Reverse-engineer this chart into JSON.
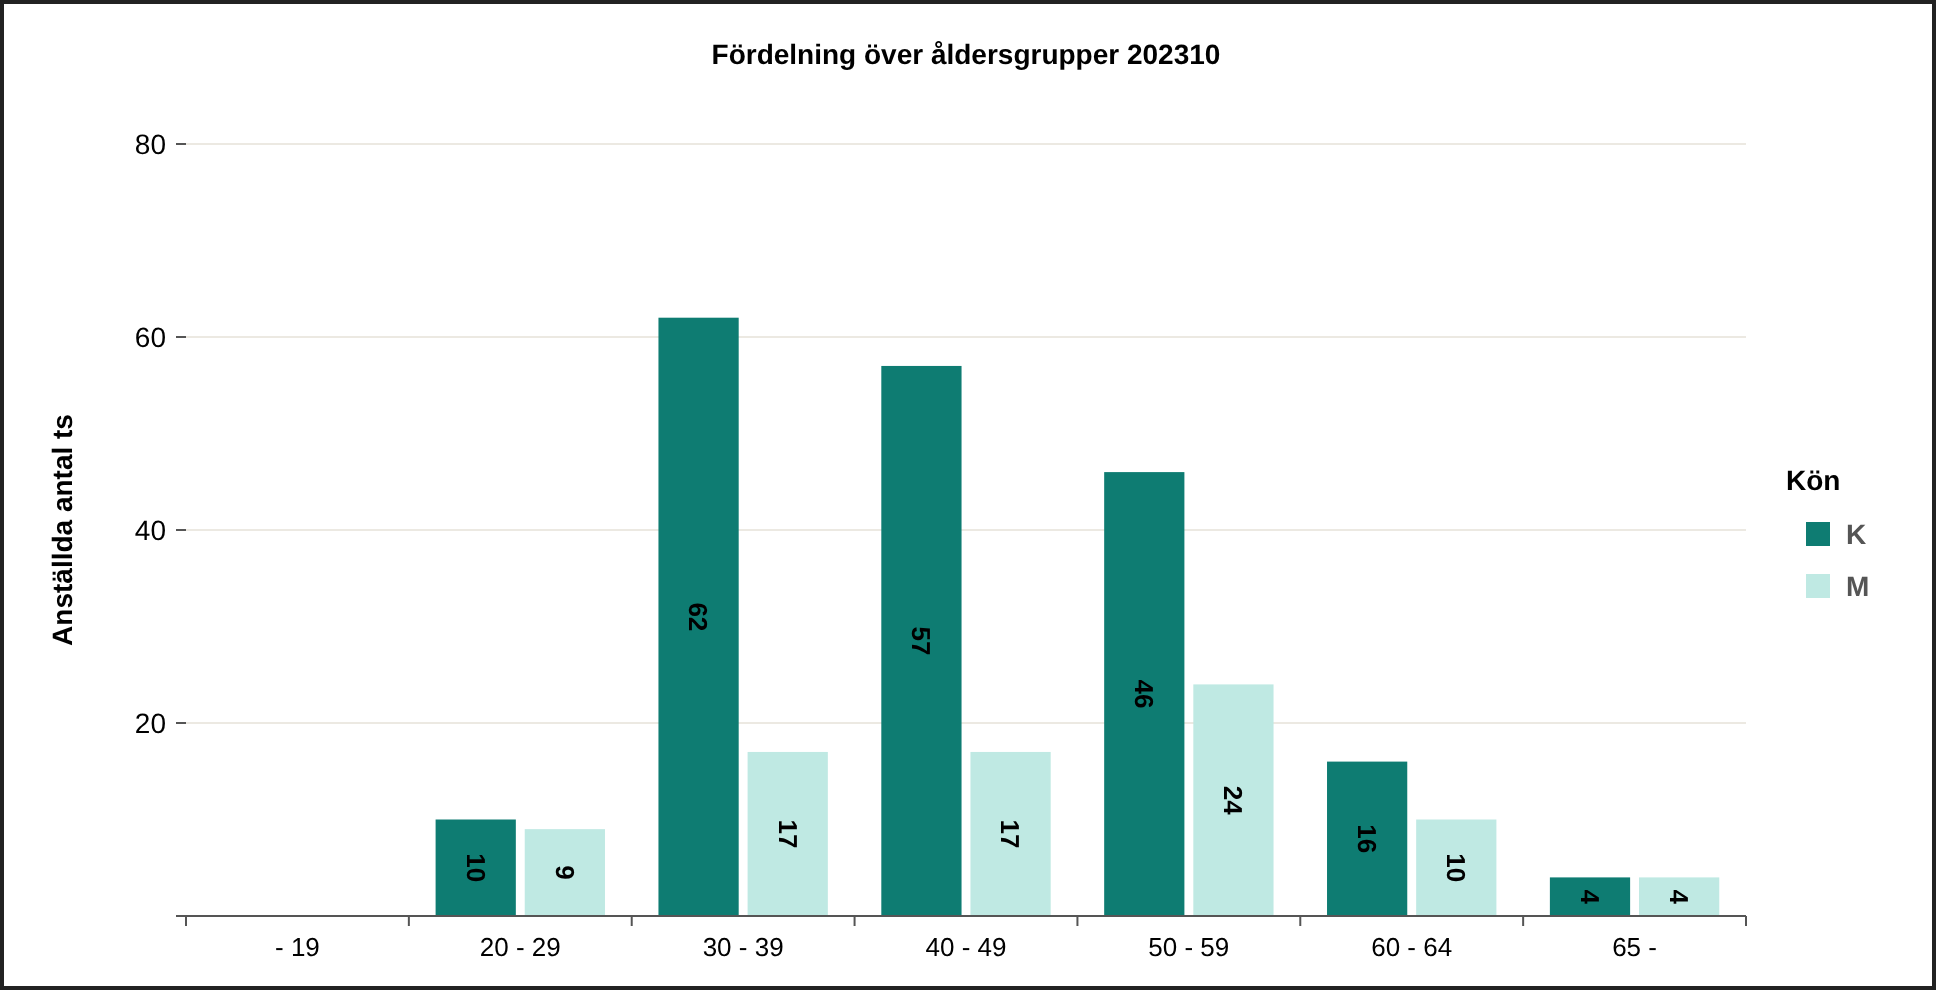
{
  "chart_data": {
    "type": "bar",
    "title": "Fördelning över åldersgrupper 202310",
    "ylabel": "Anställda antal ts",
    "legend_title": "Kön",
    "categories": [
      "- 19",
      "20 - 29",
      "30 - 39",
      "40 - 49",
      "50 - 59",
      "60 - 64",
      "65 -"
    ],
    "series": [
      {
        "name": "K",
        "color": "#0e7c72",
        "values": [
          null,
          10,
          62,
          57,
          46,
          16,
          4
        ]
      },
      {
        "name": "M",
        "color": "#bfe9e3",
        "values": [
          null,
          9,
          17,
          17,
          24,
          10,
          4
        ]
      }
    ],
    "ylim": [
      0,
      80
    ],
    "yticks": [
      {
        "value": 0,
        "label": null
      },
      20,
      40,
      60,
      80
    ],
    "grid": "y",
    "legend": "right",
    "data_labels": true
  }
}
